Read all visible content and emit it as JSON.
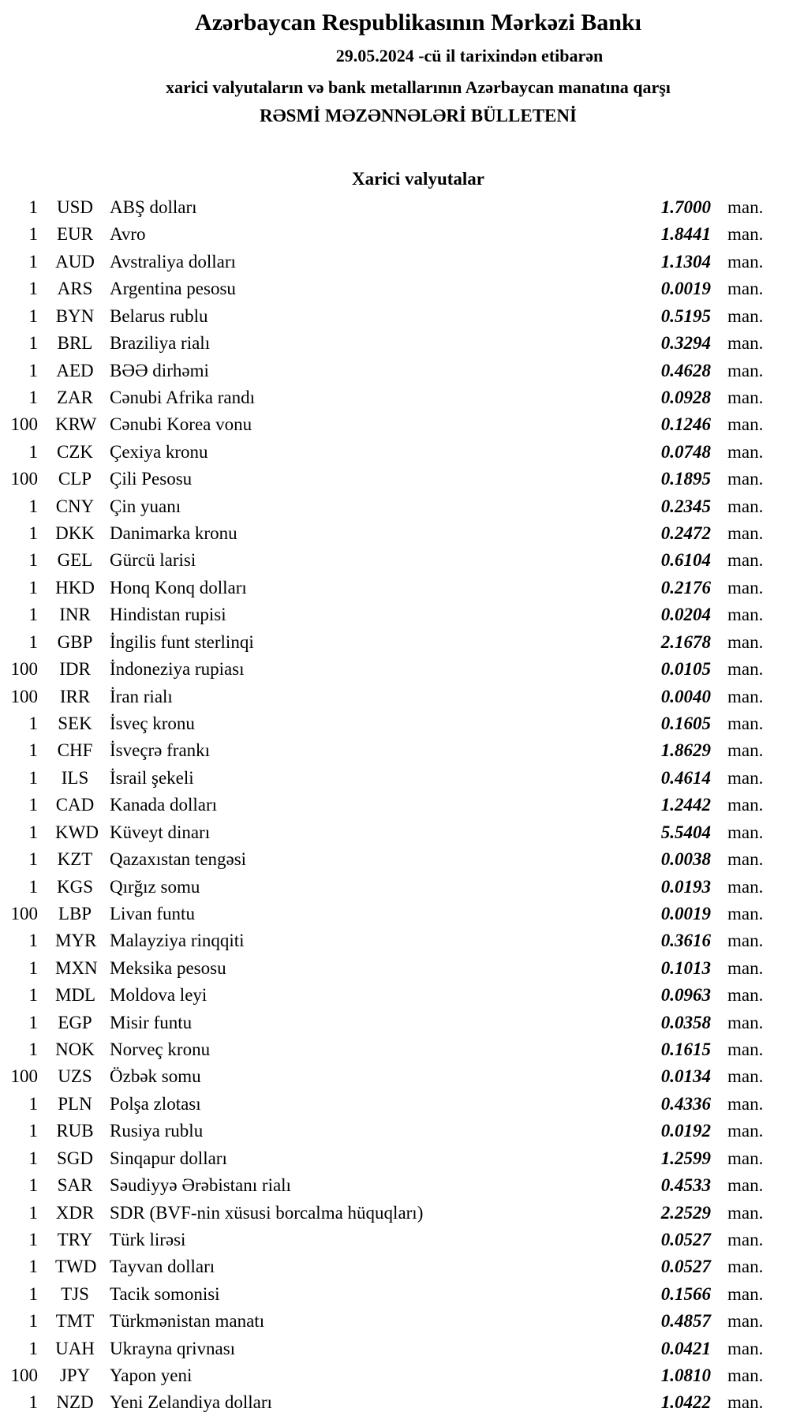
{
  "header": {
    "title": "Azərbaycan Respublikasının Mərkəzi Bankı",
    "date_line": "29.05.2024  -cü il tarixindən etibarən",
    "subtitle": "xarici valyutaların və bank metallarının Azərbaycan manatına qarşı",
    "bulletin": "RƏSMİ MƏZƏNNƏLƏRİ BÜLLETENİ"
  },
  "section_title": "Xarici valyutalar",
  "unit_label": "man.",
  "rates": [
    {
      "nominal": "1",
      "code": "USD",
      "name": "ABŞ dolları",
      "rate": "1.7000"
    },
    {
      "nominal": "1",
      "code": "EUR",
      "name": "Avro",
      "rate": "1.8441"
    },
    {
      "nominal": "1",
      "code": "AUD",
      "name": "Avstraliya dolları",
      "rate": "1.1304"
    },
    {
      "nominal": "1",
      "code": "ARS",
      "name": "Argentina pesosu",
      "rate": "0.0019"
    },
    {
      "nominal": "1",
      "code": "BYN",
      "name": "Belarus rublu",
      "rate": "0.5195"
    },
    {
      "nominal": "1",
      "code": "BRL",
      "name": "Braziliya rialı",
      "rate": "0.3294"
    },
    {
      "nominal": "1",
      "code": "AED",
      "name": "BƏƏ dirhəmi",
      "rate": "0.4628"
    },
    {
      "nominal": "1",
      "code": "ZAR",
      "name": "Cənubi Afrika randı",
      "rate": "0.0928"
    },
    {
      "nominal": "100",
      "code": "KRW",
      "name": "Cənubi Korea vonu",
      "rate": "0.1246"
    },
    {
      "nominal": "1",
      "code": "CZK",
      "name": "Çexiya kronu",
      "rate": "0.0748"
    },
    {
      "nominal": "100",
      "code": "CLP",
      "name": "Çili Pesosu",
      "rate": "0.1895"
    },
    {
      "nominal": "1",
      "code": "CNY",
      "name": "Çin yuanı",
      "rate": "0.2345"
    },
    {
      "nominal": "1",
      "code": "DKK",
      "name": "Danimarka kronu",
      "rate": "0.2472"
    },
    {
      "nominal": "1",
      "code": "GEL",
      "name": "Gürcü larisi",
      "rate": "0.6104"
    },
    {
      "nominal": "1",
      "code": "HKD",
      "name": "Honq Konq dolları",
      "rate": "0.2176"
    },
    {
      "nominal": "1",
      "code": "INR",
      "name": "Hindistan rupisi",
      "rate": "0.0204"
    },
    {
      "nominal": "1",
      "code": "GBP",
      "name": "İngilis funt sterlinqi",
      "rate": "2.1678"
    },
    {
      "nominal": "100",
      "code": "IDR",
      "name": "İndoneziya rupiası",
      "rate": "0.0105"
    },
    {
      "nominal": "100",
      "code": "IRR",
      "name": "İran rialı",
      "rate": "0.0040"
    },
    {
      "nominal": "1",
      "code": "SEK",
      "name": "İsveç kronu",
      "rate": "0.1605"
    },
    {
      "nominal": "1",
      "code": "CHF",
      "name": "İsveçrə frankı",
      "rate": "1.8629"
    },
    {
      "nominal": "1",
      "code": "ILS",
      "name": "İsrail şekeli",
      "rate": "0.4614"
    },
    {
      "nominal": "1",
      "code": "CAD",
      "name": "Kanada dolları",
      "rate": "1.2442"
    },
    {
      "nominal": "1",
      "code": "KWD",
      "name": "Küveyt dinarı",
      "rate": "5.5404"
    },
    {
      "nominal": "1",
      "code": "KZT",
      "name": "Qazaxıstan tengəsi",
      "rate": "0.0038"
    },
    {
      "nominal": "1",
      "code": "KGS",
      "name": "Qırğız somu",
      "rate": "0.0193"
    },
    {
      "nominal": "100",
      "code": "LBP",
      "name": "Livan funtu",
      "rate": "0.0019"
    },
    {
      "nominal": "1",
      "code": "MYR",
      "name": "Malayziya rinqqiti",
      "rate": "0.3616"
    },
    {
      "nominal": "1",
      "code": "MXN",
      "name": "Meksika pesosu",
      "rate": "0.1013"
    },
    {
      "nominal": "1",
      "code": "MDL",
      "name": "Moldova leyi",
      "rate": "0.0963"
    },
    {
      "nominal": "1",
      "code": "EGP",
      "name": "Misir funtu",
      "rate": "0.0358"
    },
    {
      "nominal": "1",
      "code": "NOK",
      "name": "Norveç kronu",
      "rate": "0.1615"
    },
    {
      "nominal": "100",
      "code": "UZS",
      "name": "Özbək somu",
      "rate": "0.0134"
    },
    {
      "nominal": "1",
      "code": "PLN",
      "name": "Polşa zlotası",
      "rate": "0.4336"
    },
    {
      "nominal": "1",
      "code": "RUB",
      "name": "Rusiya rublu",
      "rate": "0.0192"
    },
    {
      "nominal": "1",
      "code": "SGD",
      "name": "Sinqapur dolları",
      "rate": "1.2599"
    },
    {
      "nominal": "1",
      "code": "SAR",
      "name": "Səudiyyə Ərəbistanı rialı",
      "rate": "0.4533"
    },
    {
      "nominal": "1",
      "code": "XDR",
      "name": "SDR (BVF-nin xüsusi borcalma hüquqları)",
      "rate": "2.2529"
    },
    {
      "nominal": "1",
      "code": "TRY",
      "name": "Türk lirəsi",
      "rate": "0.0527"
    },
    {
      "nominal": "1",
      "code": "TWD",
      "name": "Tayvan dolları",
      "rate": "0.0527"
    },
    {
      "nominal": "1",
      "code": "TJS",
      "name": "Tacik somonisi",
      "rate": "0.1566"
    },
    {
      "nominal": "1",
      "code": "TMT",
      "name": "Türkmənistan manatı",
      "rate": "0.4857"
    },
    {
      "nominal": "1",
      "code": "UAH",
      "name": "Ukrayna qrivnası",
      "rate": "0.0421"
    },
    {
      "nominal": "100",
      "code": "JPY",
      "name": "Yapon yeni",
      "rate": "1.0810"
    },
    {
      "nominal": "1",
      "code": "NZD",
      "name": "Yeni Zelandiya dolları",
      "rate": "1.0422"
    }
  ]
}
